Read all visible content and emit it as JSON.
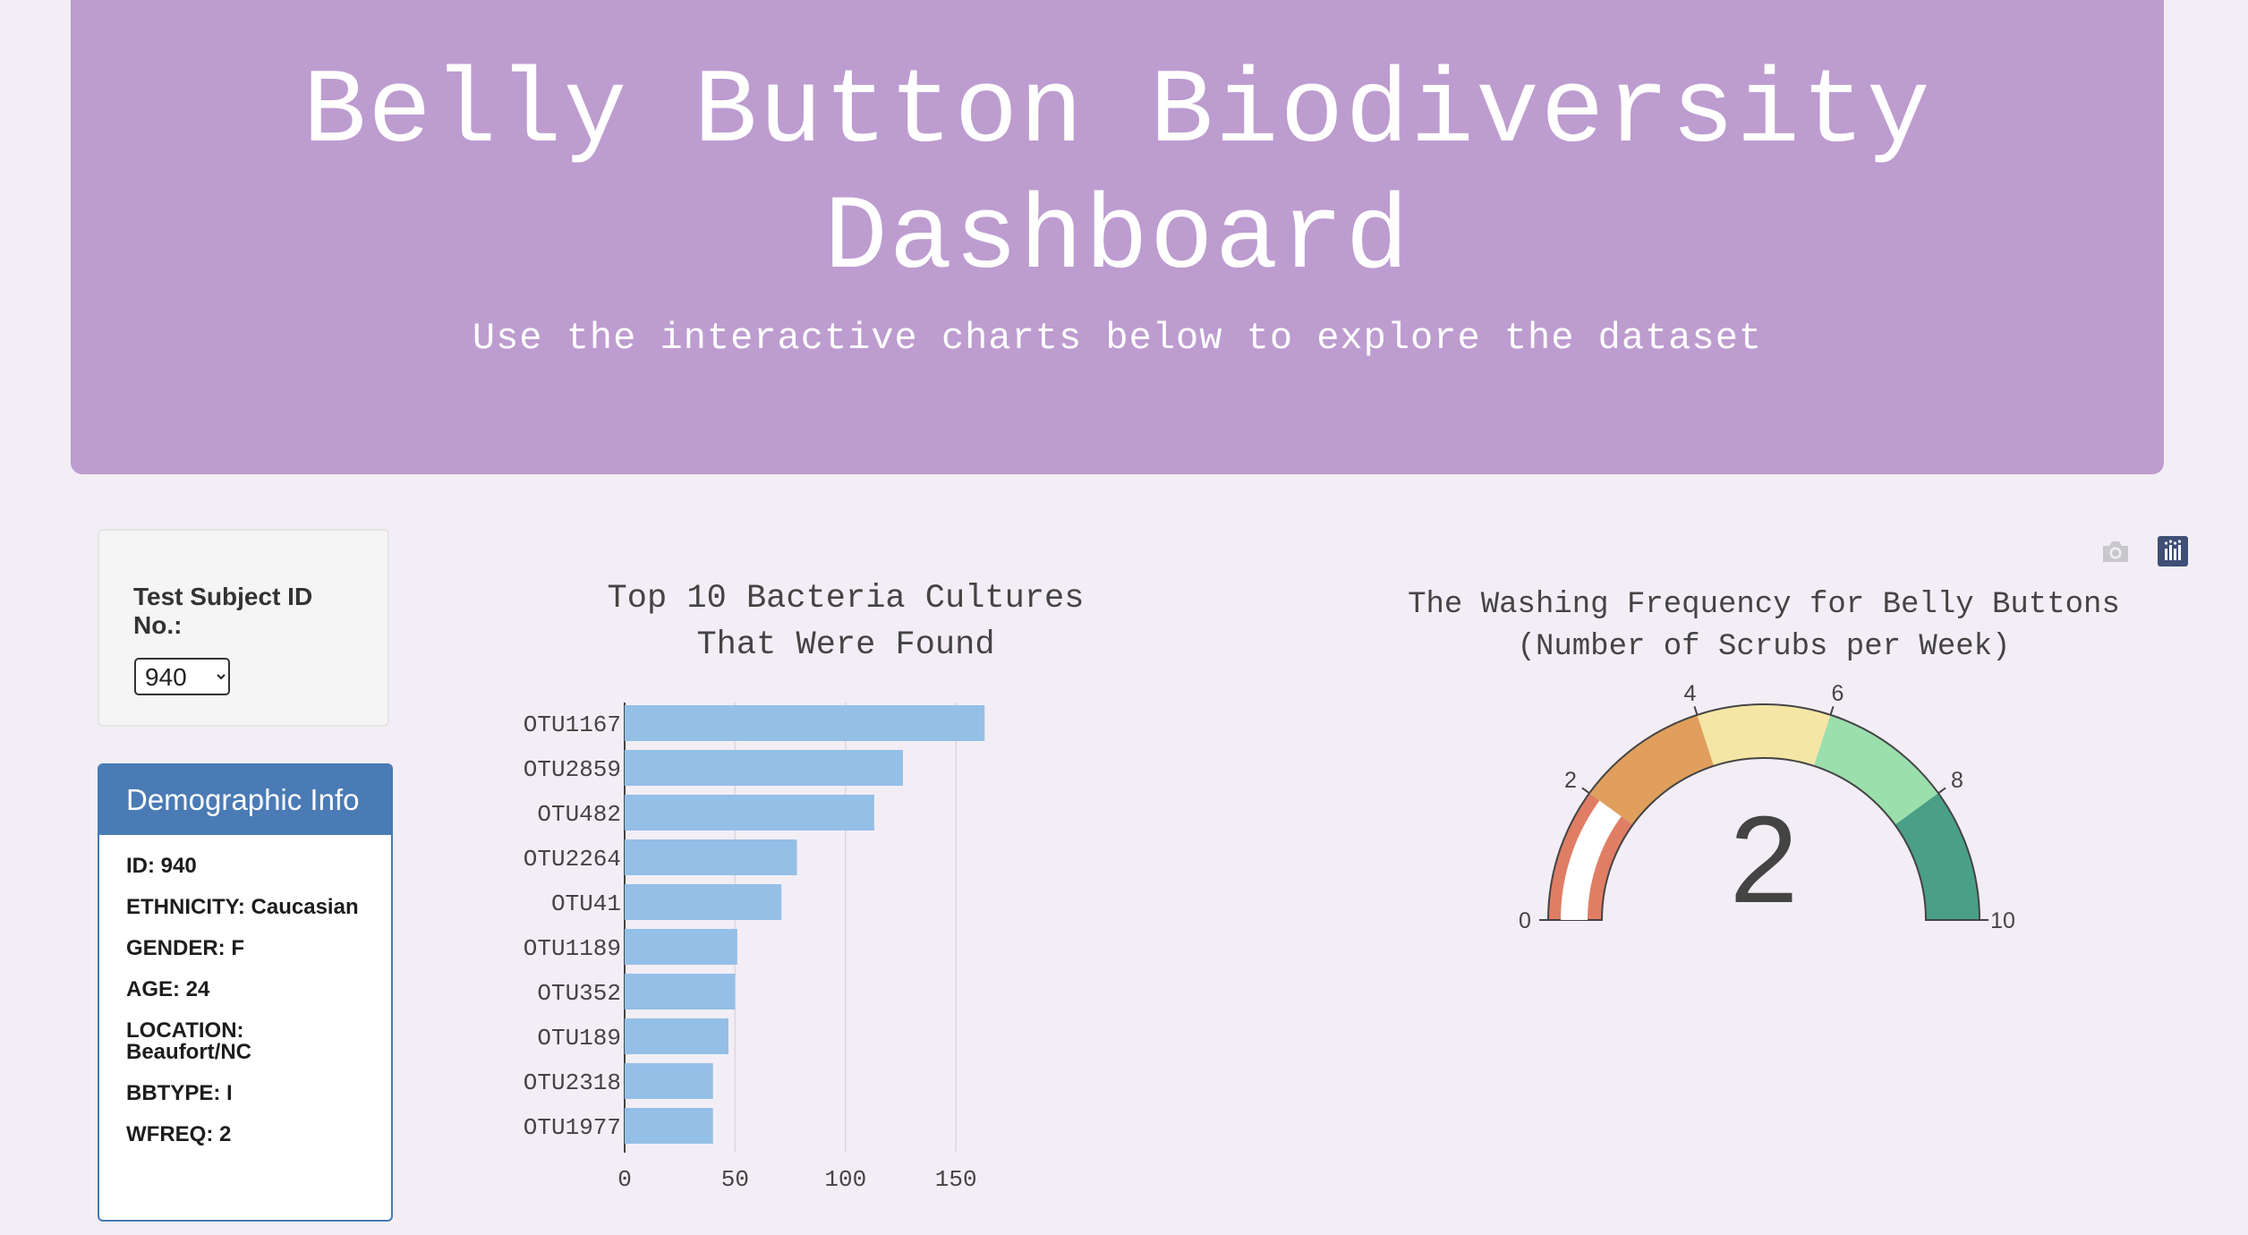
{
  "header": {
    "title": "Belly Button Biodiversity Dashboard",
    "subtitle": "Use the interactive charts below to explore the dataset"
  },
  "selector": {
    "label": "Test Subject ID No.:",
    "selected": "940"
  },
  "demographics": {
    "heading": "Demographic Info",
    "rows": [
      "ID: 940",
      "ETHNICITY: Caucasian",
      "GENDER: F",
      "AGE: 24",
      "LOCATION: Beaufort/NC",
      "BBTYPE: I",
      "WFREQ: 2"
    ]
  },
  "toolbar": {
    "icons": [
      "camera-icon",
      "plotly-logo-icon"
    ]
  },
  "colors": {
    "header_bg": "#bd9ccf",
    "page_bg": "#f3eef5",
    "panel_heading": "#4a7bb5",
    "bar_fill": "#94bfe6",
    "gauge_bands": [
      "#e07d65",
      "#e09f5c",
      "#f5e6a6",
      "#9bdfad",
      "#4aa086"
    ]
  },
  "chart_data": [
    {
      "type": "bar",
      "orientation": "horizontal",
      "title": "Top 10 Bacteria Cultures That Were Found",
      "title_lines": [
        "Top 10 Bacteria Cultures",
        "That Were Found"
      ],
      "categories": [
        "OTU1167",
        "OTU2859",
        "OTU482",
        "OTU2264",
        "OTU41",
        "OTU1189",
        "OTU352",
        "OTU189",
        "OTU2318",
        "OTU1977"
      ],
      "values": [
        163,
        126,
        113,
        78,
        71,
        51,
        50,
        47,
        40,
        40
      ],
      "xticks": [
        0,
        50,
        100,
        150
      ],
      "xlim": [
        0,
        171
      ],
      "grid": true,
      "xlabel": "",
      "ylabel": ""
    },
    {
      "type": "gauge",
      "title": "The Washing Frequency for Belly Buttons (Number of Scrubs per Week)",
      "title_lines": [
        "The Washing Frequency for Belly Buttons",
        "(Number of Scrubs per Week)"
      ],
      "value": 2,
      "range": [
        0,
        10
      ],
      "ticks": [
        0,
        2,
        4,
        6,
        8,
        10
      ],
      "steps": [
        [
          0,
          2
        ],
        [
          2,
          4
        ],
        [
          4,
          6
        ],
        [
          6,
          8
        ],
        [
          8,
          10
        ]
      ]
    }
  ]
}
